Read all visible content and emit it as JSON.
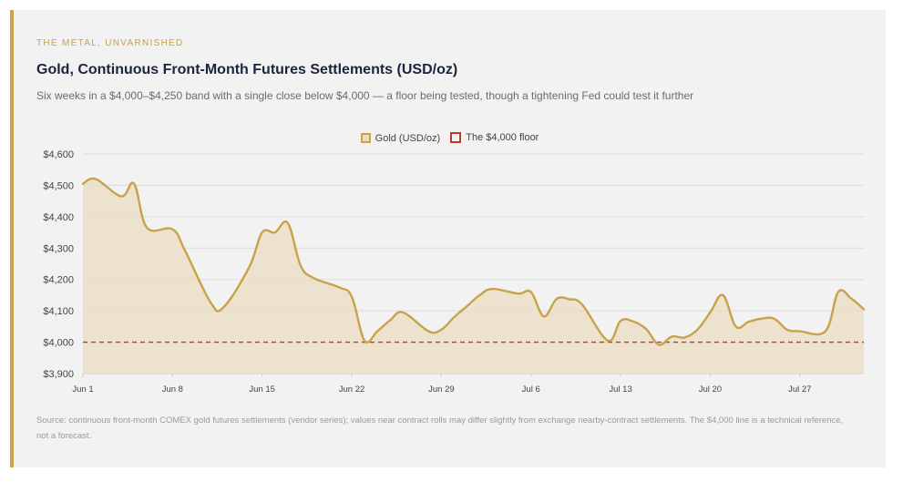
{
  "header": {
    "eyebrow": "THE METAL, UNVARNISHED",
    "title": "Gold, Continuous Front-Month Futures Settlements (USD/oz)",
    "subtitle": "Six weeks in a $4,000–$4,250 band with a single close below $4,000 — a floor being tested, though a tightening Fed could test it further"
  },
  "legend": {
    "gold_label": "Gold (USD/oz)",
    "floor_label": "The $4,000 floor"
  },
  "source_note": "Source: continuous front-month COMEX gold futures settlements (vendor series); values near contract rolls may differ slightly from exchange nearby-contract settlements. The $4,000 line is a technical reference, not a forecast.",
  "colors": {
    "gold_line": "#c9a24a",
    "gold_fill": "#eadcc2",
    "floor_line": "#c0392b",
    "accent_bar": "#c9a24a"
  },
  "chart_data": {
    "type": "area",
    "title": "Gold, Continuous Front-Month Futures Settlements (USD/oz)",
    "ylim": [
      3900,
      4600
    ],
    "yticks": [
      "$3,900",
      "$4,000",
      "$4,100",
      "$4,200",
      "$4,300",
      "$4,400",
      "$4,500",
      "$4,600"
    ],
    "ytick_values": [
      3900,
      4000,
      4100,
      4200,
      4300,
      4400,
      4500,
      4600
    ],
    "xlim": [
      1,
      62
    ],
    "xticks": [
      "Jun 1",
      "Jun 8",
      "Jun 15",
      "Jun 22",
      "Jun 29",
      "Jul 6",
      "Jul 13",
      "Jul 20",
      "Jul 27"
    ],
    "xtick_days": [
      1,
      8,
      15,
      22,
      29,
      36,
      43,
      50,
      57
    ],
    "grid": true,
    "legend_placement": "top-center",
    "series": [
      {
        "name": "Gold (USD/oz)",
        "x": [
          1,
          2,
          4,
          5,
          6,
          8,
          9,
          11,
          12,
          14,
          15,
          16,
          17,
          18,
          19,
          21,
          22,
          23,
          24,
          25,
          26,
          28,
          29,
          30,
          31,
          32,
          33,
          35,
          36,
          37,
          38,
          39,
          40,
          42,
          43,
          44,
          45,
          46,
          47,
          48,
          49,
          50,
          51,
          52,
          53,
          54,
          55,
          56,
          57,
          59,
          60,
          61,
          62
        ],
        "values": [
          4505,
          4520,
          4465,
          4505,
          4365,
          4360,
          4290,
          4125,
          4112,
          4240,
          4350,
          4350,
          4380,
          4245,
          4205,
          4175,
          4145,
          4005,
          4035,
          4070,
          4095,
          4035,
          4040,
          4080,
          4115,
          4150,
          4170,
          4155,
          4160,
          4082,
          4138,
          4137,
          4120,
          4005,
          4068,
          4066,
          4042,
          3992,
          4018,
          4015,
          4040,
          4095,
          4150,
          4050,
          4065,
          4075,
          4075,
          4040,
          4035,
          4035,
          4160,
          4140,
          4105
        ]
      },
      {
        "name": "The $4,000 floor",
        "type": "line",
        "style": "dashed",
        "values": [
          4000
        ]
      }
    ]
  }
}
